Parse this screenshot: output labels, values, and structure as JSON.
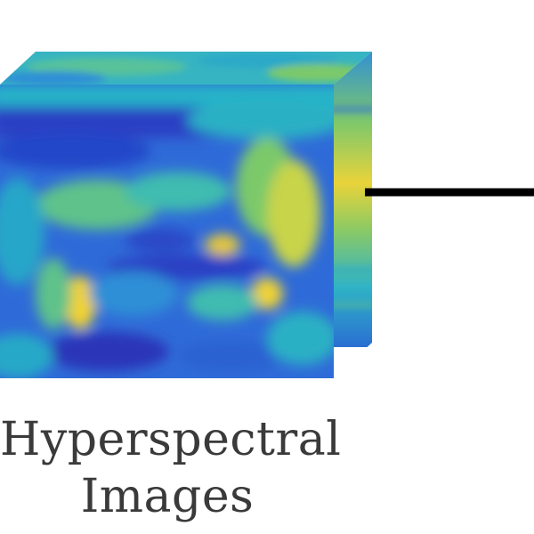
{
  "caption": {
    "line1": "Hyperspectral",
    "line2": "Images"
  },
  "icons": {
    "cube": "hyperspectral-cube-icon",
    "connector": "connector-line"
  },
  "colors": {
    "deep_blue": "#2a3fc4",
    "blue": "#2f6bd8",
    "cyan": "#22b7c9",
    "green": "#7cc96a",
    "yellow": "#f5d431",
    "line": "#000000",
    "text": "#3a3a3a"
  }
}
